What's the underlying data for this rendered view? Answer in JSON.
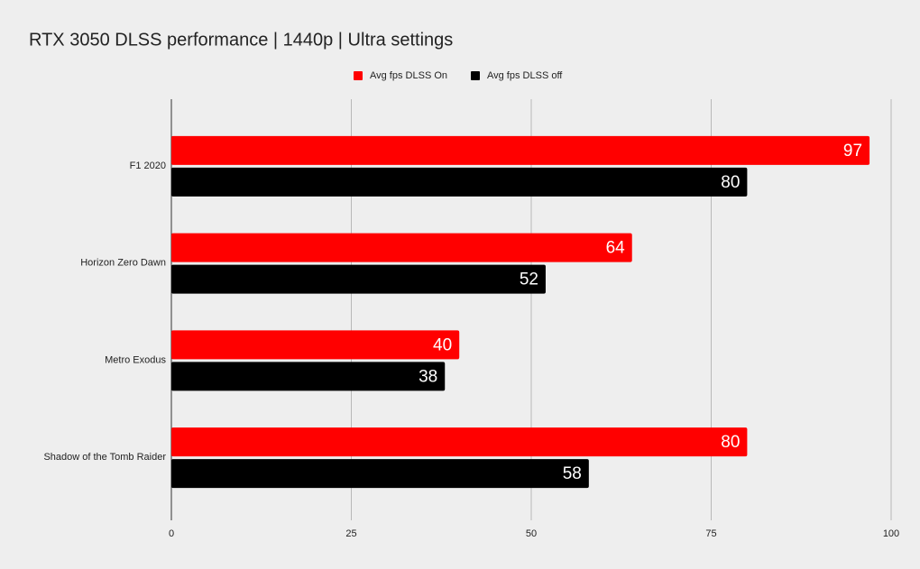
{
  "chart_data": {
    "type": "hbar",
    "title": "RTX 3050 DLSS performance | 1440p | Ultra settings",
    "categories": [
      "F1 2020",
      "Horizon Zero Dawn",
      "Metro Exodus",
      "Shadow of the Tomb Raider"
    ],
    "series": [
      {
        "name": "Avg fps DLSS On",
        "color": "#ff0000",
        "values": [
          97,
          64,
          40,
          80
        ]
      },
      {
        "name": "Avg fps DLSS off",
        "color": "#000000",
        "values": [
          80,
          52,
          38,
          58
        ]
      }
    ],
    "xlim": [
      0,
      100
    ],
    "xticks": [
      0,
      25,
      50,
      75,
      100
    ],
    "grid": true,
    "legend": "top"
  }
}
